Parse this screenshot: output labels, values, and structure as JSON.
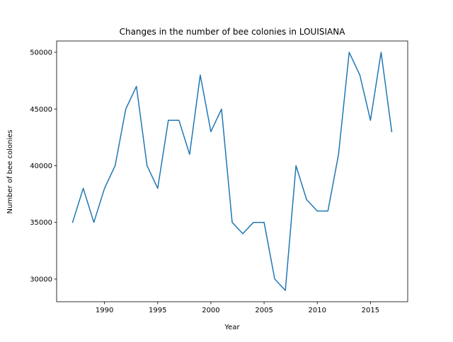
{
  "chart_data": {
    "type": "line",
    "title": "Changes in the number of bee colonies in LOUISIANA",
    "xlabel": "Year",
    "ylabel": "Number of bee colonies",
    "xlim": [
      1985.5,
      2018.5
    ],
    "ylim": [
      28000,
      51000
    ],
    "xticks": [
      1990,
      1995,
      2000,
      2005,
      2010,
      2015
    ],
    "yticks": [
      30000,
      35000,
      40000,
      45000,
      50000
    ],
    "grid": false,
    "series": [
      {
        "color": "#1f77b4",
        "x": [
          1987,
          1988,
          1989,
          1990,
          1991,
          1992,
          1993,
          1994,
          1995,
          1996,
          1997,
          1998,
          1999,
          2000,
          2001,
          2002,
          2003,
          2004,
          2005,
          2006,
          2007,
          2008,
          2009,
          2010,
          2011,
          2012,
          2013,
          2014,
          2015,
          2016,
          2017
        ],
        "y": [
          35000,
          38000,
          35000,
          38000,
          40000,
          45000,
          47000,
          40000,
          38000,
          44000,
          44000,
          41000,
          48000,
          43000,
          45000,
          35000,
          34000,
          35000,
          35000,
          30000,
          29000,
          40000,
          37000,
          36000,
          36000,
          41000,
          50000,
          48000,
          44000,
          50000,
          43000
        ]
      }
    ]
  }
}
